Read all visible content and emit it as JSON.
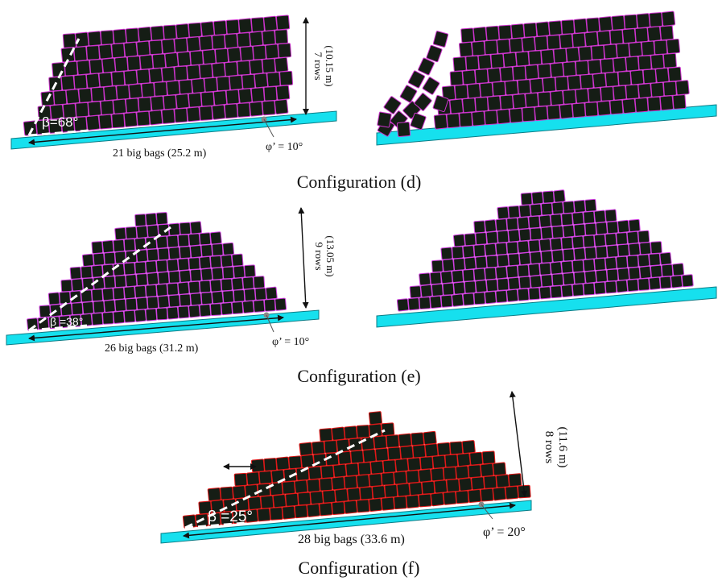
{
  "colors": {
    "ground": "#16e0ee",
    "ground_edge": "#0b7c86",
    "bag": "#151d15",
    "seam_d": "#cc33cc",
    "seam_e": "#d040e0",
    "seam_f": "#e01818",
    "slope_line": "#ffffff",
    "annotation": "#111111"
  },
  "config_d": {
    "caption": "Configuration (d)",
    "height_label_rows": "7 rows",
    "height_label_m": "(10.15 m)",
    "base_label": "21 big bags (25.2 m)",
    "friction_label": "φ’ = 10°",
    "angle_label": "β=68°"
  },
  "config_e": {
    "caption": "Configuration (e)",
    "height_label_rows": "9 rows",
    "height_label_m": "(13.05 m)",
    "base_label": "26 big bags (31.2 m)",
    "friction_label": "φ’ = 10°",
    "angle_label": "β =38°"
  },
  "config_f": {
    "caption": "Configuration (f)",
    "height_label_rows": "8 rows",
    "height_label_m": "(11.6 m)",
    "base_label": "28 big bags (33.6 m)",
    "friction_label": "φ’ = 20°",
    "angle_label": "β =25°"
  }
}
